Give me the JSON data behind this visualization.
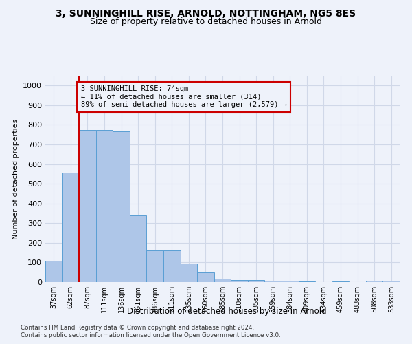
{
  "title1": "3, SUNNINGHILL RISE, ARNOLD, NOTTINGHAM, NG5 8ES",
  "title2": "Size of property relative to detached houses in Arnold",
  "xlabel": "Distribution of detached houses by size in Arnold",
  "ylabel": "Number of detached properties",
  "categories": [
    "37sqm",
    "62sqm",
    "87sqm",
    "111sqm",
    "136sqm",
    "161sqm",
    "186sqm",
    "211sqm",
    "235sqm",
    "260sqm",
    "285sqm",
    "310sqm",
    "335sqm",
    "359sqm",
    "384sqm",
    "409sqm",
    "434sqm",
    "459sqm",
    "483sqm",
    "508sqm",
    "533sqm"
  ],
  "values": [
    110,
    555,
    775,
    775,
    765,
    340,
    160,
    160,
    95,
    50,
    18,
    12,
    10,
    8,
    8,
    5,
    0,
    5,
    0,
    8,
    8
  ],
  "bar_color": "#aec6e8",
  "bar_edge_color": "#5a9fd4",
  "grid_color": "#d0d8e8",
  "annotation_box_text": "3 SUNNINGHILL RISE: 74sqm\n← 11% of detached houses are smaller (314)\n89% of semi-detached houses are larger (2,579) →",
  "vline_color": "#cc0000",
  "annotation_box_color": "#cc0000",
  "ylim": [
    0,
    1050
  ],
  "yticks": [
    0,
    100,
    200,
    300,
    400,
    500,
    600,
    700,
    800,
    900,
    1000
  ],
  "footer1": "Contains HM Land Registry data © Crown copyright and database right 2024.",
  "footer2": "Contains public sector information licensed under the Open Government Licence v3.0.",
  "background_color": "#eef2fa"
}
